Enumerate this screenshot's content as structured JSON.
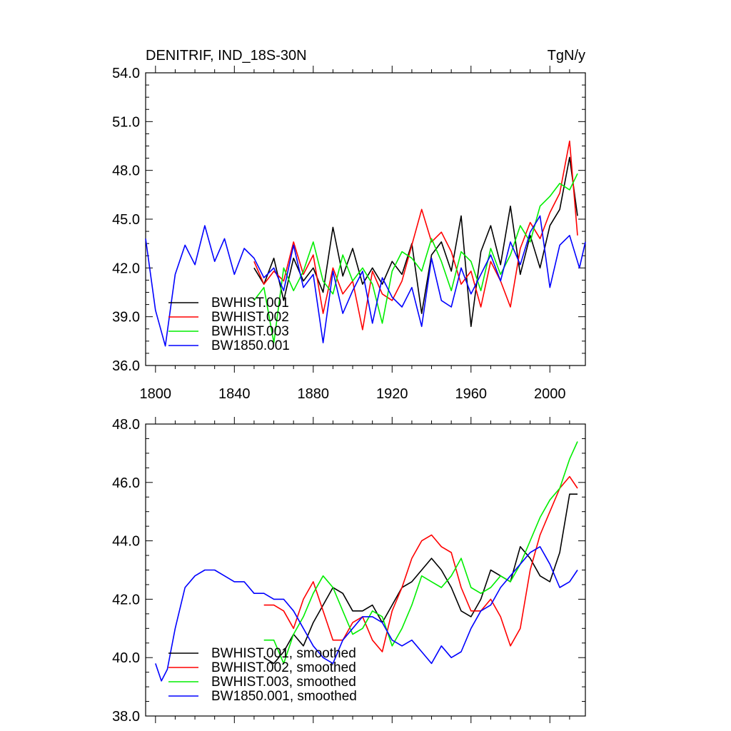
{
  "chart_data": [
    {
      "type": "line",
      "title": "DENITRIF, IND_18S-30N",
      "units": "TgN/y",
      "xlim": [
        1795,
        2018
      ],
      "ylim": [
        36.0,
        54.0
      ],
      "x_ticks": [
        1800,
        1840,
        1880,
        1920,
        1960,
        2000
      ],
      "y_ticks": [
        "36.0",
        "39.0",
        "42.0",
        "45.0",
        "48.0",
        "51.0",
        "54.0"
      ],
      "legend_position": "bottom-left",
      "series": [
        {
          "name": "BWHIST.001",
          "color": "#000000",
          "x": [
            1850,
            1855,
            1860,
            1865,
            1870,
            1875,
            1880,
            1885,
            1890,
            1895,
            1900,
            1905,
            1910,
            1915,
            1920,
            1925,
            1930,
            1935,
            1940,
            1945,
            1950,
            1955,
            1960,
            1965,
            1970,
            1975,
            1980,
            1985,
            1990,
            1995,
            2000,
            2005,
            2010,
            2014
          ],
          "values": [
            42.0,
            41.0,
            42.6,
            40.0,
            42.6,
            41.2,
            42.0,
            40.5,
            44.5,
            41.5,
            43.2,
            41.0,
            42.0,
            41.0,
            42.4,
            41.6,
            43.5,
            39.2,
            42.8,
            43.6,
            41.8,
            45.2,
            38.4,
            43.0,
            44.6,
            42.2,
            45.8,
            41.6,
            44.0,
            42.0,
            44.6,
            45.6,
            48.8,
            45.2
          ]
        },
        {
          "name": "BWHIST.002",
          "color": "#ff0000",
          "x": [
            1850,
            1855,
            1860,
            1865,
            1870,
            1875,
            1880,
            1885,
            1890,
            1895,
            1900,
            1905,
            1910,
            1915,
            1920,
            1925,
            1930,
            1935,
            1940,
            1945,
            1950,
            1955,
            1960,
            1965,
            1970,
            1975,
            1980,
            1985,
            1990,
            1995,
            2000,
            2005,
            2010,
            2014
          ],
          "values": [
            42.4,
            41.0,
            41.8,
            41.2,
            43.6,
            41.6,
            42.8,
            39.2,
            42.0,
            40.4,
            41.2,
            38.2,
            41.8,
            40.4,
            40.0,
            41.2,
            43.4,
            45.6,
            43.6,
            44.2,
            43.0,
            41.0,
            41.8,
            39.6,
            42.4,
            41.2,
            39.6,
            43.2,
            44.8,
            43.8,
            45.4,
            46.6,
            49.8,
            44.0
          ]
        },
        {
          "name": "BWHIST.003",
          "color": "#00ee00",
          "x": [
            1850,
            1855,
            1860,
            1865,
            1870,
            1875,
            1880,
            1885,
            1890,
            1895,
            1900,
            1905,
            1910,
            1915,
            1920,
            1925,
            1930,
            1935,
            1940,
            1945,
            1950,
            1955,
            1960,
            1965,
            1970,
            1975,
            1980,
            1985,
            1990,
            1995,
            2000,
            2005,
            2010,
            2014
          ],
          "values": [
            40.0,
            40.8,
            37.4,
            42.0,
            40.6,
            41.8,
            43.6,
            41.2,
            40.4,
            42.8,
            41.2,
            42.0,
            41.0,
            38.6,
            41.8,
            43.0,
            42.6,
            41.8,
            43.8,
            42.4,
            40.6,
            43.0,
            42.4,
            40.6,
            43.2,
            41.6,
            42.8,
            44.6,
            43.6,
            45.8,
            46.4,
            47.2,
            46.8,
            47.8
          ]
        },
        {
          "name": "BW1850.001",
          "color": "#0000ff",
          "x": [
            1795,
            1800,
            1805,
            1810,
            1815,
            1820,
            1825,
            1830,
            1835,
            1840,
            1845,
            1850,
            1855,
            1860,
            1865,
            1870,
            1875,
            1880,
            1885,
            1890,
            1895,
            1900,
            1905,
            1910,
            1915,
            1920,
            1925,
            1930,
            1935,
            1940,
            1945,
            1950,
            1955,
            1960,
            1965,
            1970,
            1975,
            1980,
            1985,
            1990,
            1995,
            2000,
            2005,
            2010,
            2015,
            2018
          ],
          "values": [
            43.8,
            39.4,
            37.2,
            41.6,
            43.4,
            42.2,
            44.6,
            42.4,
            43.8,
            41.6,
            43.2,
            42.6,
            41.4,
            42.0,
            40.6,
            43.4,
            40.8,
            41.6,
            37.4,
            41.8,
            39.2,
            40.6,
            41.8,
            38.6,
            41.4,
            40.2,
            39.6,
            40.8,
            38.4,
            42.6,
            40.0,
            39.6,
            42.0,
            40.4,
            41.6,
            42.8,
            41.2,
            43.6,
            42.2,
            44.2,
            45.2,
            40.8,
            43.4,
            44.0,
            42.0,
            43.6
          ]
        }
      ],
      "legend": [
        {
          "label": "BWHIST.001",
          "color": "#000000"
        },
        {
          "label": "BWHIST.002",
          "color": "#ff0000"
        },
        {
          "label": "BWHIST.003",
          "color": "#00ee00"
        },
        {
          "label": "BW1850.001",
          "color": "#0000ff"
        }
      ]
    },
    {
      "type": "line",
      "title": "",
      "xlim": [
        1795,
        2018
      ],
      "ylim": [
        38.0,
        48.0
      ],
      "x_ticks": [
        1800,
        1840,
        1880,
        1920,
        1960,
        2000
      ],
      "y_ticks": [
        "38.0",
        "40.0",
        "42.0",
        "44.0",
        "46.0",
        "48.0"
      ],
      "legend_position": "bottom-left",
      "series": [
        {
          "name": "BWHIST.001, smoothed",
          "color": "#000000",
          "x": [
            1855,
            1860,
            1865,
            1870,
            1875,
            1880,
            1885,
            1890,
            1895,
            1900,
            1905,
            1910,
            1915,
            1920,
            1925,
            1930,
            1935,
            1940,
            1945,
            1950,
            1955,
            1960,
            1965,
            1970,
            1975,
            1980,
            1985,
            1990,
            1995,
            2000,
            2005,
            2010,
            2014
          ],
          "values": [
            40.0,
            39.8,
            40.2,
            40.8,
            40.4,
            41.2,
            41.8,
            42.4,
            42.2,
            41.6,
            41.6,
            41.8,
            41.2,
            41.8,
            42.4,
            42.6,
            43.0,
            43.4,
            43.0,
            42.4,
            41.6,
            41.4,
            42.0,
            43.0,
            42.8,
            42.6,
            43.8,
            43.4,
            42.8,
            42.6,
            43.6,
            45.6,
            45.6
          ]
        },
        {
          "name": "BWHIST.002, smoothed",
          "color": "#ff0000",
          "x": [
            1855,
            1860,
            1865,
            1870,
            1875,
            1880,
            1885,
            1890,
            1895,
            1900,
            1905,
            1910,
            1915,
            1920,
            1925,
            1930,
            1935,
            1940,
            1945,
            1950,
            1955,
            1960,
            1965,
            1970,
            1975,
            1980,
            1985,
            1990,
            1995,
            2000,
            2005,
            2010,
            2014
          ],
          "values": [
            41.8,
            41.8,
            41.6,
            41.0,
            42.0,
            42.6,
            41.6,
            40.6,
            40.6,
            41.2,
            41.4,
            40.6,
            40.2,
            41.6,
            42.4,
            43.4,
            44.0,
            44.2,
            43.8,
            43.6,
            42.4,
            41.6,
            41.6,
            42.0,
            41.4,
            40.4,
            41.0,
            43.0,
            44.2,
            45.0,
            45.8,
            46.2,
            45.8
          ]
        },
        {
          "name": "BWHIST.003, smoothed",
          "color": "#00ee00",
          "x": [
            1855,
            1860,
            1865,
            1870,
            1875,
            1880,
            1885,
            1890,
            1895,
            1900,
            1905,
            1910,
            1915,
            1920,
            1925,
            1930,
            1935,
            1940,
            1945,
            1950,
            1955,
            1960,
            1965,
            1970,
            1975,
            1980,
            1985,
            1990,
            1995,
            2000,
            2005,
            2010,
            2014
          ],
          "values": [
            40.6,
            40.6,
            39.8,
            40.8,
            41.4,
            42.2,
            42.8,
            42.4,
            41.6,
            40.8,
            41.0,
            41.6,
            41.4,
            40.4,
            41.0,
            41.8,
            42.8,
            42.6,
            42.4,
            42.8,
            43.4,
            42.4,
            42.2,
            42.4,
            42.8,
            42.6,
            43.2,
            44.0,
            44.8,
            45.4,
            45.8,
            46.8,
            47.4
          ]
        },
        {
          "name": "BW1850.001, smoothed",
          "color": "#0000ff",
          "x": [
            1800,
            1803,
            1806,
            1810,
            1815,
            1820,
            1825,
            1830,
            1835,
            1840,
            1845,
            1850,
            1855,
            1860,
            1865,
            1870,
            1875,
            1880,
            1885,
            1890,
            1895,
            1900,
            1905,
            1910,
            1915,
            1920,
            1925,
            1930,
            1935,
            1940,
            1945,
            1950,
            1955,
            1960,
            1965,
            1970,
            1975,
            1980,
            1985,
            1990,
            1995,
            2000,
            2005,
            2010,
            2014
          ],
          "values": [
            39.8,
            39.2,
            39.6,
            41.0,
            42.4,
            42.8,
            43.0,
            43.0,
            42.8,
            42.6,
            42.6,
            42.2,
            42.2,
            42.0,
            42.0,
            41.6,
            41.0,
            40.4,
            40.0,
            39.8,
            40.6,
            41.0,
            41.4,
            41.4,
            41.2,
            40.6,
            40.4,
            40.6,
            40.2,
            39.8,
            40.4,
            40.0,
            40.2,
            41.0,
            41.6,
            41.8,
            42.4,
            42.8,
            43.2,
            43.6,
            43.8,
            43.2,
            42.4,
            42.6,
            43.0
          ]
        }
      ],
      "legend": [
        {
          "label": "BWHIST.001, smoothed",
          "color": "#000000"
        },
        {
          "label": "BWHIST.002, smoothed",
          "color": "#ff0000"
        },
        {
          "label": "BWHIST.003, smoothed",
          "color": "#00ee00"
        },
        {
          "label": "BW1850.001, smoothed",
          "color": "#0000ff"
        }
      ]
    }
  ]
}
